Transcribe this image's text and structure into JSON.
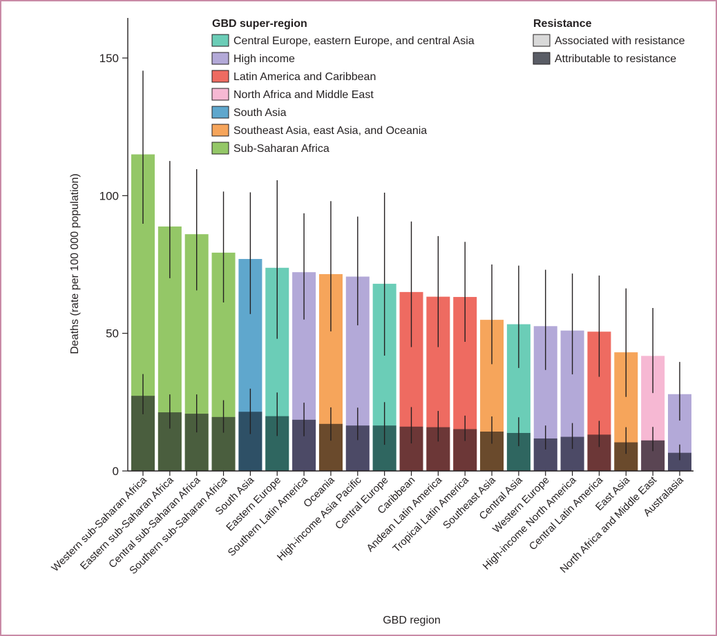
{
  "chart_data": {
    "type": "bar",
    "xlabel": "GBD region",
    "ylabel": "Deaths (rate per 100 000 population)",
    "ylim": [
      0,
      160
    ],
    "yticks": [
      0,
      50,
      100,
      150
    ],
    "grid": false,
    "legend_placement": "top",
    "categories": [
      "Western sub-Saharan Africa",
      "Eastern sub-Saharan Africa",
      "Central sub-Saharan Africa",
      "Southern sub-Saharan Africa",
      "South Asia",
      "Eastern Europe",
      "Southern Latin America",
      "Oceania",
      "High-income Asia Pacific",
      "Central Europe",
      "Caribbean",
      "Andean Latin America",
      "Tropical Latin America",
      "Southeast Asia",
      "Central Asia",
      "Western Europe",
      "High-income North America",
      "Central Latin America",
      "East Asia",
      "North Africa and Middle East",
      "Australasia"
    ],
    "super_region_of_category": [
      "Sub-Saharan Africa",
      "Sub-Saharan Africa",
      "Sub-Saharan Africa",
      "Sub-Saharan Africa",
      "South Asia",
      "Central Europe, eastern Europe, and central Asia",
      "High income",
      "Southeast Asia, east Asia, and Oceania",
      "High income",
      "Central Europe, eastern Europe, and central Asia",
      "Latin America and Caribbean",
      "Latin America and Caribbean",
      "Latin America and Caribbean",
      "Southeast Asia, east Asia, and Oceania",
      "Central Europe, eastern Europe, and central Asia",
      "High income",
      "High income",
      "Latin America and Caribbean",
      "Southeast Asia, east Asia, and Oceania",
      "North Africa and Middle East",
      "High income"
    ],
    "series": [
      {
        "name": "Associated with resistance",
        "values": [
          115.0,
          88.8,
          86.0,
          79.3,
          77.0,
          73.8,
          72.2,
          71.5,
          70.6,
          68.0,
          65.0,
          63.3,
          63.2,
          54.9,
          53.3,
          52.6,
          51.0,
          50.6,
          43.1,
          41.8,
          27.9
        ],
        "error_low": [
          89.8,
          70.0,
          65.6,
          61.2,
          57.0,
          48.0,
          55.0,
          50.7,
          52.9,
          41.9,
          45.0,
          45.0,
          46.9,
          38.8,
          37.4,
          36.7,
          35.1,
          34.2,
          26.9,
          28.3,
          18.3
        ],
        "error_high": [
          145.4,
          112.6,
          109.6,
          101.5,
          101.2,
          105.6,
          93.6,
          98.0,
          92.4,
          101.1,
          90.6,
          85.3,
          83.2,
          75.0,
          74.6,
          73.1,
          71.7,
          71.0,
          66.3,
          59.2,
          39.6
        ]
      },
      {
        "name": "Attributable to resistance",
        "values": [
          27.3,
          21.3,
          20.8,
          19.6,
          21.5,
          19.9,
          18.6,
          17.1,
          16.5,
          16.5,
          16.1,
          15.9,
          15.2,
          14.3,
          13.8,
          11.8,
          12.4,
          13.2,
          10.4,
          11.1,
          6.6
        ],
        "error_low": [
          20.6,
          15.4,
          14.0,
          13.9,
          13.4,
          12.7,
          12.6,
          11.0,
          11.2,
          9.5,
          10.0,
          10.7,
          10.9,
          9.9,
          9.0,
          7.8,
          8.0,
          8.7,
          6.2,
          7.2,
          3.9
        ],
        "error_high": [
          35.2,
          27.8,
          27.8,
          25.7,
          29.9,
          28.5,
          24.8,
          23.1,
          23.0,
          25.0,
          23.2,
          21.8,
          20.1,
          19.8,
          19.5,
          16.5,
          17.4,
          18.2,
          15.9,
          16.0,
          9.6
        ]
      }
    ]
  },
  "legend": {
    "super_region_title": "GBD super-region",
    "super_regions": [
      {
        "label": "Central Europe, eastern Europe, and central Asia",
        "color": "#6bcdb7",
        "dark_color": "#2f6660"
      },
      {
        "label": "High income",
        "color": "#b3a9d8",
        "dark_color": "#4c4a66"
      },
      {
        "label": "Latin America and Caribbean",
        "color": "#ee6b61",
        "dark_color": "#6c3737"
      },
      {
        "label": "North Africa and Middle East",
        "color": "#f6b8d3",
        "dark_color": "#5a4553"
      },
      {
        "label": "South Asia",
        "color": "#5fa7cd",
        "dark_color": "#2e5066"
      },
      {
        "label": "Southeast Asia, east Asia, and Oceania",
        "color": "#f6a55b",
        "dark_color": "#6a4a2c"
      },
      {
        "label": "Sub-Saharan Africa",
        "color": "#94c767",
        "dark_color": "#4a5e3e"
      }
    ],
    "resistance_title": "Resistance",
    "resistance_items": [
      {
        "label": "Associated with resistance",
        "color": "#d9d9d9"
      },
      {
        "label": "Attributable to resistance",
        "color": "#5a5d66"
      }
    ]
  },
  "colors": {
    "frame": "#c98aa6",
    "axis": "#231f20",
    "error_bar": "#231f20"
  }
}
